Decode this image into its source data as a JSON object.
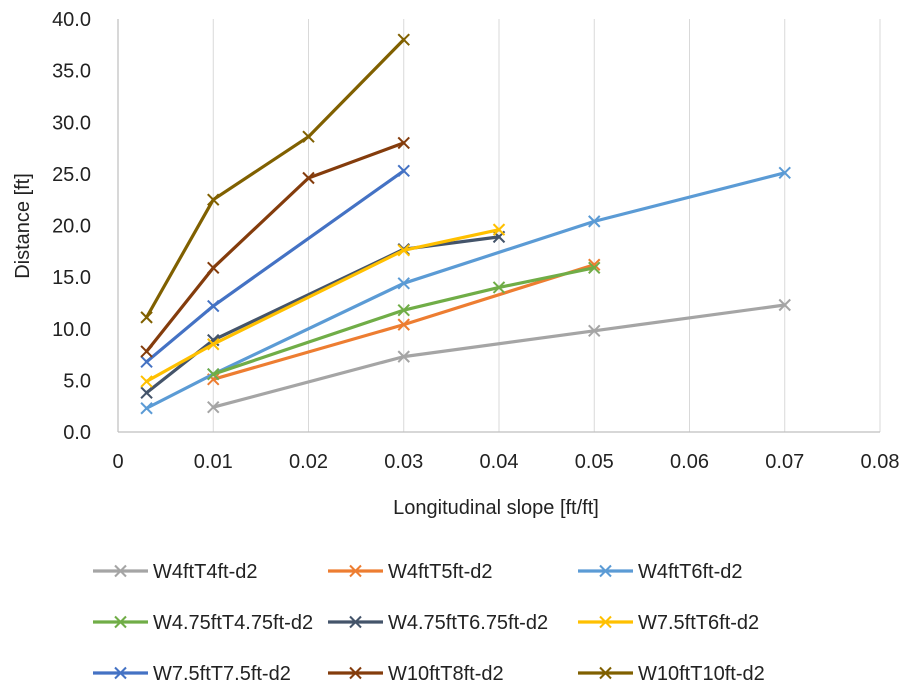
{
  "chart_data": {
    "type": "line",
    "xlabel": "Longitudinal slope [ft/ft]",
    "ylabel": "Distance [ft]",
    "xlim": [
      0,
      0.08
    ],
    "ylim": [
      0,
      40
    ],
    "xticks": [
      "0",
      "0.01",
      "0.02",
      "0.03",
      "0.04",
      "0.05",
      "0.06",
      "0.07",
      "0.08"
    ],
    "yticks": [
      "0.0",
      "5.0",
      "10.0",
      "15.0",
      "20.0",
      "25.0",
      "30.0",
      "35.0",
      "40.0"
    ],
    "grid": "vertical",
    "legend_position": "bottom",
    "marker": "x",
    "series": [
      {
        "name": "W4ftT4ft-d2",
        "color": "#a5a5a5",
        "x": [
          0.01,
          0.03,
          0.05,
          0.07
        ],
        "y": [
          2.4,
          7.3,
          9.8,
          12.3
        ]
      },
      {
        "name": "W4ftT5ft-d2",
        "color": "#ed7d31",
        "x": [
          0.01,
          0.03,
          0.05
        ],
        "y": [
          5.1,
          10.4,
          16.2
        ]
      },
      {
        "name": "W4ftT6ft-d2",
        "color": "#5b9bd5",
        "x": [
          0.003,
          0.01,
          0.03,
          0.05,
          0.07
        ],
        "y": [
          2.3,
          5.6,
          14.4,
          20.4,
          25.1
        ]
      },
      {
        "name": "W4.75ftT4.75ft-d2",
        "color": "#70ad47",
        "x": [
          0.01,
          0.03,
          0.04,
          0.05
        ],
        "y": [
          5.6,
          11.8,
          14.0,
          15.9
        ]
      },
      {
        "name": "W4.75ftT6.75ft-d2",
        "color": "#44546a",
        "x": [
          0.003,
          0.01,
          0.03,
          0.04
        ],
        "y": [
          3.8,
          8.9,
          17.7,
          18.9
        ]
      },
      {
        "name": "W7.5ftT6ft-d2",
        "color": "#ffc000",
        "x": [
          0.003,
          0.01,
          0.03,
          0.04
        ],
        "y": [
          4.9,
          8.5,
          17.6,
          19.6
        ]
      },
      {
        "name": "W7.5ftT7.5ft-d2",
        "color": "#4472c4",
        "x": [
          0.003,
          0.01,
          0.03
        ],
        "y": [
          6.8,
          12.2,
          25.3
        ]
      },
      {
        "name": "W10ftT8ft-d2",
        "color": "#843c0c",
        "x": [
          0.003,
          0.01,
          0.02,
          0.03
        ],
        "y": [
          7.8,
          15.9,
          24.6,
          28.0
        ]
      },
      {
        "name": "W10ftT10ft-d2",
        "color": "#806000",
        "x": [
          0.003,
          0.01,
          0.02,
          0.03
        ],
        "y": [
          11.1,
          22.5,
          28.6,
          38.0
        ]
      }
    ]
  }
}
